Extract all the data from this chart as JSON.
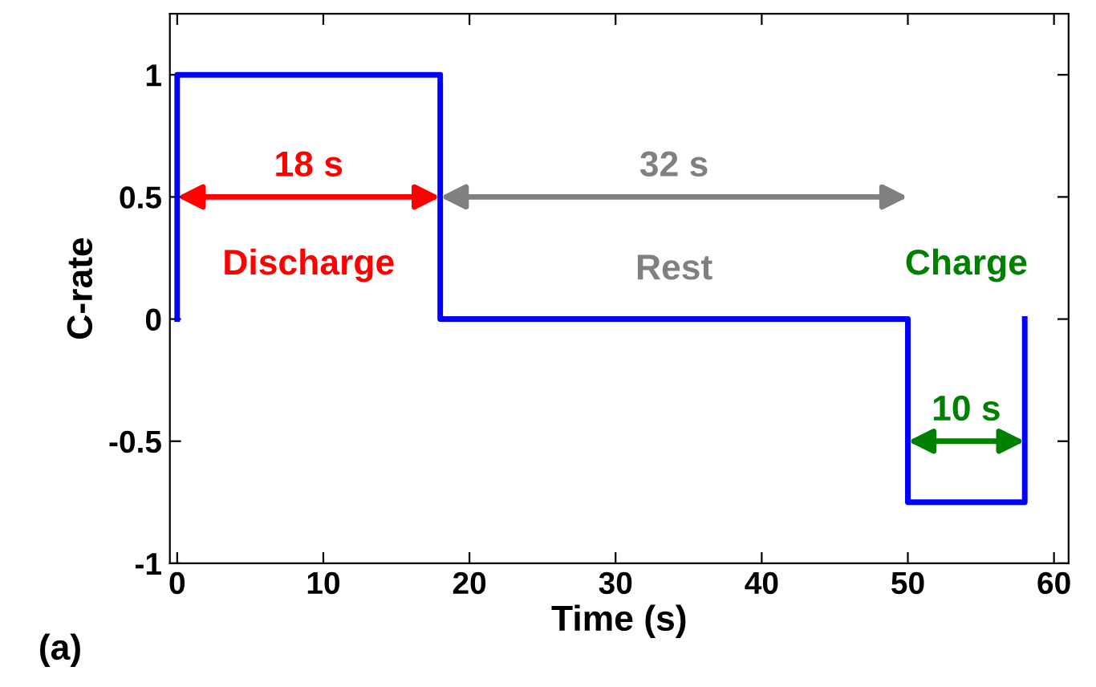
{
  "chart_data": {
    "type": "line",
    "xlabel": "Time (s)",
    "ylabel": "C-rate",
    "series": [
      {
        "color": "#0000ff",
        "x": [
          0,
          0,
          18,
          18,
          50,
          50,
          58,
          58
        ],
        "values": [
          0,
          1,
          1,
          0,
          0,
          -0.75,
          -0.75,
          0
        ]
      }
    ],
    "xlim": [
      -0.5,
      61
    ],
    "xticks": [
      0,
      10,
      20,
      30,
      40,
      50,
      60
    ],
    "ylim": [
      -1,
      1.25
    ],
    "yticks": [
      -1,
      -0.5,
      0,
      0.5,
      1
    ],
    "grid": false,
    "legend": false,
    "annotations": [
      "18 s",
      "Discharge",
      "32 s",
      "Rest",
      "10 s",
      "Charge",
      "(a)"
    ]
  }
}
